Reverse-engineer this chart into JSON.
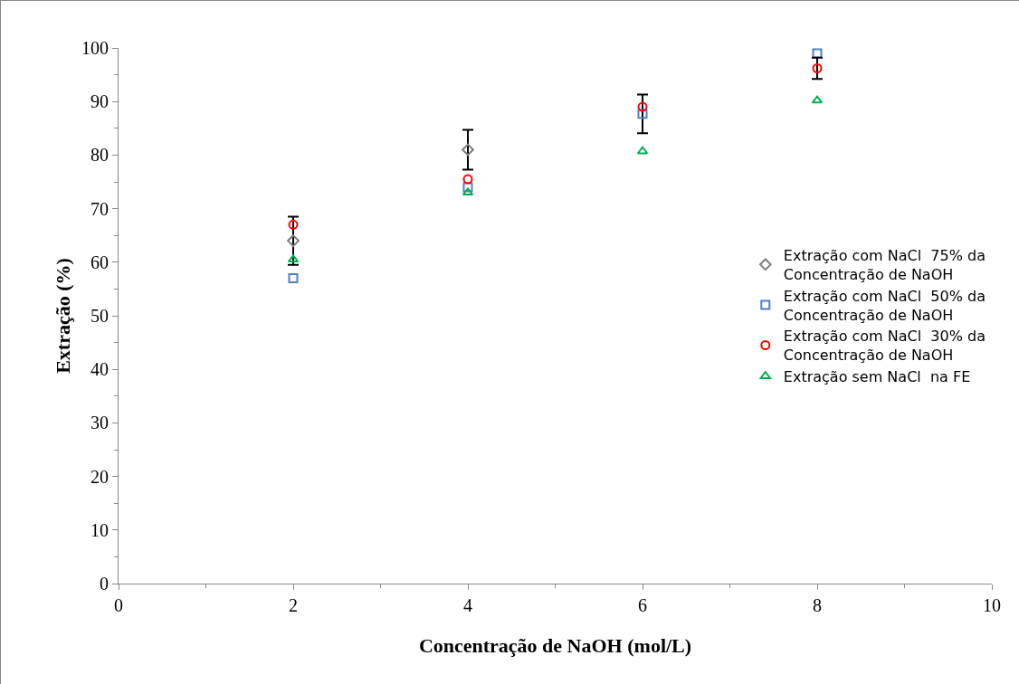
{
  "chart_data": {
    "type": "scatter",
    "xlabel": "Concentração de NaOH (mol/L)",
    "ylabel": "Extração (%)",
    "x": [
      2,
      4,
      6,
      8
    ],
    "series": [
      {
        "name": "Extração com NaCl  75% da Concentração de NaOH",
        "color": "#7f7f7f",
        "marker": "diamond",
        "values": [
          64,
          81,
          null,
          null
        ],
        "errors": [
          4.5,
          3.7,
          null,
          null
        ]
      },
      {
        "name": "Extração com NaCl  50% da Concentração de NaOH",
        "color": "#4f81bd",
        "marker": "square",
        "values": [
          57,
          74,
          87.7,
          99
        ],
        "errors": [
          null,
          null,
          3.6,
          null
        ]
      },
      {
        "name": "Extração com NaCl  30% da Concentração de NaOH",
        "color": "#ff0000",
        "marker": "circle",
        "values": [
          67,
          75.5,
          89,
          96.2
        ],
        "errors": [
          null,
          null,
          null,
          2
        ]
      },
      {
        "name": "Extração sem NaCl  na FE",
        "color": "#00b050",
        "marker": "triangle",
        "values": [
          60.5,
          73,
          80.7,
          90.2
        ]
      }
    ],
    "xlim": [
      0,
      10
    ],
    "xticks": [
      0,
      2,
      4,
      6,
      8,
      10
    ],
    "ylim": [
      0,
      100
    ],
    "yticks": [
      0,
      10,
      20,
      30,
      40,
      50,
      60,
      70,
      80,
      90,
      100
    ],
    "grid": false,
    "legend": "right"
  }
}
